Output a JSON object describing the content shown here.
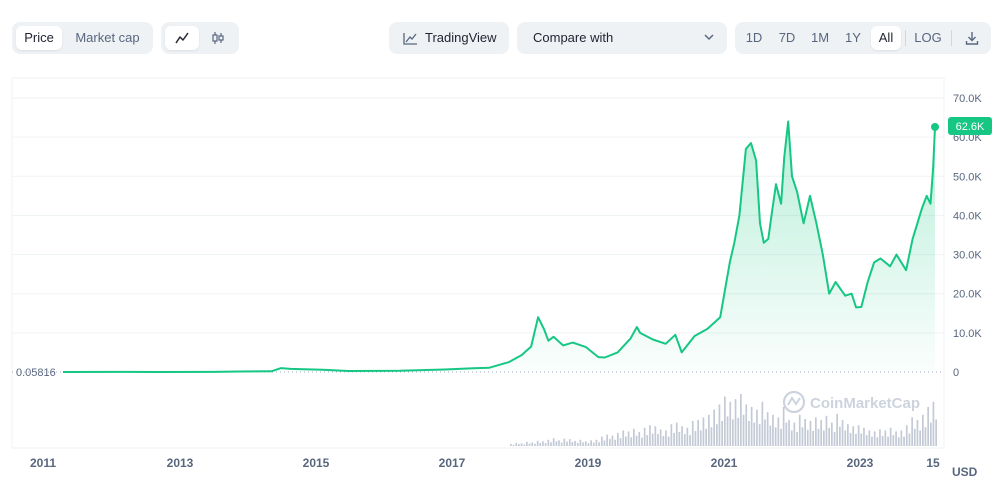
{
  "toolbar": {
    "view_tabs": [
      "Price",
      "Market cap"
    ],
    "tradingview_label": "TradingView",
    "compare_label": "Compare with",
    "ranges": [
      "1D",
      "7D",
      "1M",
      "1Y",
      "All"
    ],
    "log_label": "LOG"
  },
  "watermark": "CoinMarketCap",
  "currency": "USD",
  "start_price_label": "0.05816",
  "current_price_label": "62.6K",
  "colors": {
    "line": "#16c784",
    "accent": "#16c784",
    "grid": "#eff2f5",
    "volume": "#c3cad6"
  },
  "chart_data": {
    "type": "area",
    "title": "",
    "xlabel": "",
    "ylabel": "",
    "x_ticks": [
      "2011",
      "2013",
      "2015",
      "2017",
      "2019",
      "2021",
      "2023",
      "15"
    ],
    "y_ticks": [
      "70.0K",
      "60.0K",
      "50.0K",
      "40.0K",
      "30.0K",
      "20.0K",
      "10.0K",
      "0"
    ],
    "ylim": [
      0,
      70000
    ],
    "xlim": [
      2010.55,
      2024.15
    ],
    "grid": true,
    "series": [
      {
        "values": [
          [
            2010.55,
            0.06
          ],
          [
            2011.45,
            15
          ],
          [
            2012.0,
            5
          ],
          [
            2012.9,
            13
          ],
          [
            2013.3,
            120
          ],
          [
            2013.8,
            180
          ],
          [
            2013.95,
            1000
          ],
          [
            2014.1,
            800
          ],
          [
            2014.6,
            600
          ],
          [
            2015.0,
            250
          ],
          [
            2015.8,
            300
          ],
          [
            2016.5,
            650
          ],
          [
            2016.95,
            950
          ],
          [
            2017.2,
            1100
          ],
          [
            2017.5,
            2500
          ],
          [
            2017.7,
            4300
          ],
          [
            2017.85,
            6500
          ],
          [
            2017.96,
            14000
          ],
          [
            2018.05,
            11000
          ],
          [
            2018.12,
            8000
          ],
          [
            2018.2,
            9000
          ],
          [
            2018.35,
            6800
          ],
          [
            2018.5,
            7500
          ],
          [
            2018.7,
            6400
          ],
          [
            2018.9,
            3800
          ],
          [
            2019.0,
            3700
          ],
          [
            2019.2,
            5000
          ],
          [
            2019.4,
            8500
          ],
          [
            2019.5,
            11500
          ],
          [
            2019.55,
            10000
          ],
          [
            2019.75,
            8300
          ],
          [
            2019.95,
            7200
          ],
          [
            2020.1,
            9500
          ],
          [
            2020.2,
            5000
          ],
          [
            2020.4,
            9200
          ],
          [
            2020.6,
            11000
          ],
          [
            2020.8,
            14000
          ],
          [
            2020.95,
            28000
          ],
          [
            2021.02,
            33000
          ],
          [
            2021.1,
            40000
          ],
          [
            2021.2,
            57000
          ],
          [
            2021.28,
            58500
          ],
          [
            2021.36,
            54000
          ],
          [
            2021.42,
            38000
          ],
          [
            2021.48,
            33000
          ],
          [
            2021.55,
            34000
          ],
          [
            2021.6,
            40000
          ],
          [
            2021.67,
            48000
          ],
          [
            2021.75,
            43000
          ],
          [
            2021.8,
            55000
          ],
          [
            2021.86,
            64000
          ],
          [
            2021.92,
            50000
          ],
          [
            2022.0,
            46000
          ],
          [
            2022.1,
            38000
          ],
          [
            2022.2,
            45000
          ],
          [
            2022.3,
            38000
          ],
          [
            2022.4,
            30000
          ],
          [
            2022.5,
            20000
          ],
          [
            2022.6,
            23000
          ],
          [
            2022.75,
            19500
          ],
          [
            2022.85,
            20000
          ],
          [
            2022.92,
            16500
          ],
          [
            2023.0,
            16600
          ],
          [
            2023.1,
            23000
          ],
          [
            2023.2,
            28000
          ],
          [
            2023.3,
            29000
          ],
          [
            2023.45,
            27000
          ],
          [
            2023.55,
            30000
          ],
          [
            2023.7,
            26000
          ],
          [
            2023.8,
            34000
          ],
          [
            2023.95,
            42000
          ],
          [
            2024.02,
            45000
          ],
          [
            2024.08,
            43000
          ],
          [
            2024.12,
            52000
          ],
          [
            2024.15,
            62600
          ]
        ]
      }
    ],
    "volume": [
      0.04,
      0.06,
      0.05,
      0.08,
      0.07,
      0.1,
      0.09,
      0.12,
      0.15,
      0.11,
      0.14,
      0.13,
      0.1,
      0.12,
      0.09,
      0.11,
      0.12,
      0.18,
      0.22,
      0.2,
      0.25,
      0.3,
      0.28,
      0.33,
      0.27,
      0.35,
      0.4,
      0.38,
      0.32,
      0.3,
      0.42,
      0.45,
      0.38,
      0.35,
      0.48,
      0.5,
      0.55,
      0.6,
      0.7,
      0.8,
      0.95,
      0.85,
      0.9,
      1.0,
      0.8,
      0.75,
      0.7,
      0.85,
      0.65,
      0.6,
      0.55,
      0.75,
      0.5,
      0.45,
      0.6,
      0.52,
      0.48,
      0.55,
      0.5,
      0.58,
      0.45,
      0.62,
      0.5,
      0.42,
      0.38,
      0.4,
      0.35,
      0.3,
      0.28,
      0.32,
      0.3,
      0.35,
      0.28,
      0.3,
      0.4,
      0.55,
      0.5,
      0.6,
      0.75,
      0.85
    ]
  }
}
